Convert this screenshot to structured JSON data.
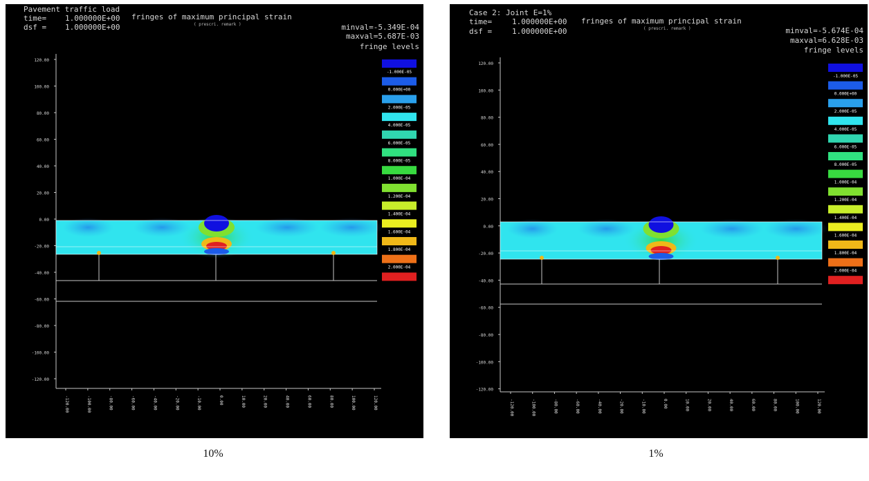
{
  "panels": [
    {
      "title": "Pavement traffic load",
      "time_label": "time=",
      "time_value": "1.000000E+00",
      "dsf_label": "dsf =",
      "dsf_value": "1.000000E+00",
      "result_title": "fringes of maximum principal strain",
      "result_subtitle": "( prescri. remark )",
      "minval_label": "minval=",
      "minval_value": "-5.349E-04",
      "maxval_label": "maxval=",
      "maxval_value": "5.687E-03",
      "fringe_title": "fringe levels",
      "caption": "10%"
    },
    {
      "title": "Case 2: Joint E=1%",
      "time_label": "time=",
      "time_value": "1.000000E+00",
      "dsf_label": "dsf =",
      "dsf_value": "1.000000E+00",
      "result_title": "fringes of maximum principal strain",
      "result_subtitle": "( prescri. remark )",
      "minval_label": "minval=",
      "minval_value": "-5.674E-04",
      "maxval_label": "maxval=",
      "maxval_value": "6.628E-03",
      "fringe_title": "fringe levels",
      "caption": "1%"
    }
  ],
  "fringe_levels": [
    {
      "color": "#1010e0",
      "label": "-1.000E-05"
    },
    {
      "color": "#1c5ce8",
      "label": "0.000E+00"
    },
    {
      "color": "#2aa0ec",
      "label": "2.000E-05"
    },
    {
      "color": "#30e4ee",
      "label": "4.000E-05"
    },
    {
      "color": "#30d6b0",
      "label": "6.000E-05"
    },
    {
      "color": "#30e080",
      "label": "8.000E-05"
    },
    {
      "color": "#38da40",
      "label": "1.000E-04"
    },
    {
      "color": "#80e030",
      "label": "1.200E-04"
    },
    {
      "color": "#c8ee2a",
      "label": "1.400E-04"
    },
    {
      "color": "#eaee20",
      "label": "1.600E-04"
    },
    {
      "color": "#f0b818",
      "label": "1.800E-04"
    },
    {
      "color": "#ee7018",
      "label": "2.000E-04"
    },
    {
      "color": "#e02020",
      "label": ""
    }
  ],
  "y_ticks": [
    "120.00",
    "100.00",
    "80.00",
    "60.00",
    "40.00",
    "20.00",
    "0.00",
    "-20.00",
    "-40.00",
    "-60.00",
    "-80.00",
    "-100.00",
    "-120.00"
  ],
  "x_ticks": [
    "-120.00",
    "-100.00",
    "-80.00",
    "-60.00",
    "-40.00",
    "-20.00",
    "-10.00",
    "0.00",
    "10.00",
    "20.00",
    "40.00",
    "60.00",
    "80.00",
    "100.00",
    "120.00"
  ],
  "colors": {
    "background": "#000000",
    "text": "#d8d8d8",
    "axis": "#c8c8c8",
    "slab_fill": "#30e4ee",
    "outline": "#ffffff"
  }
}
